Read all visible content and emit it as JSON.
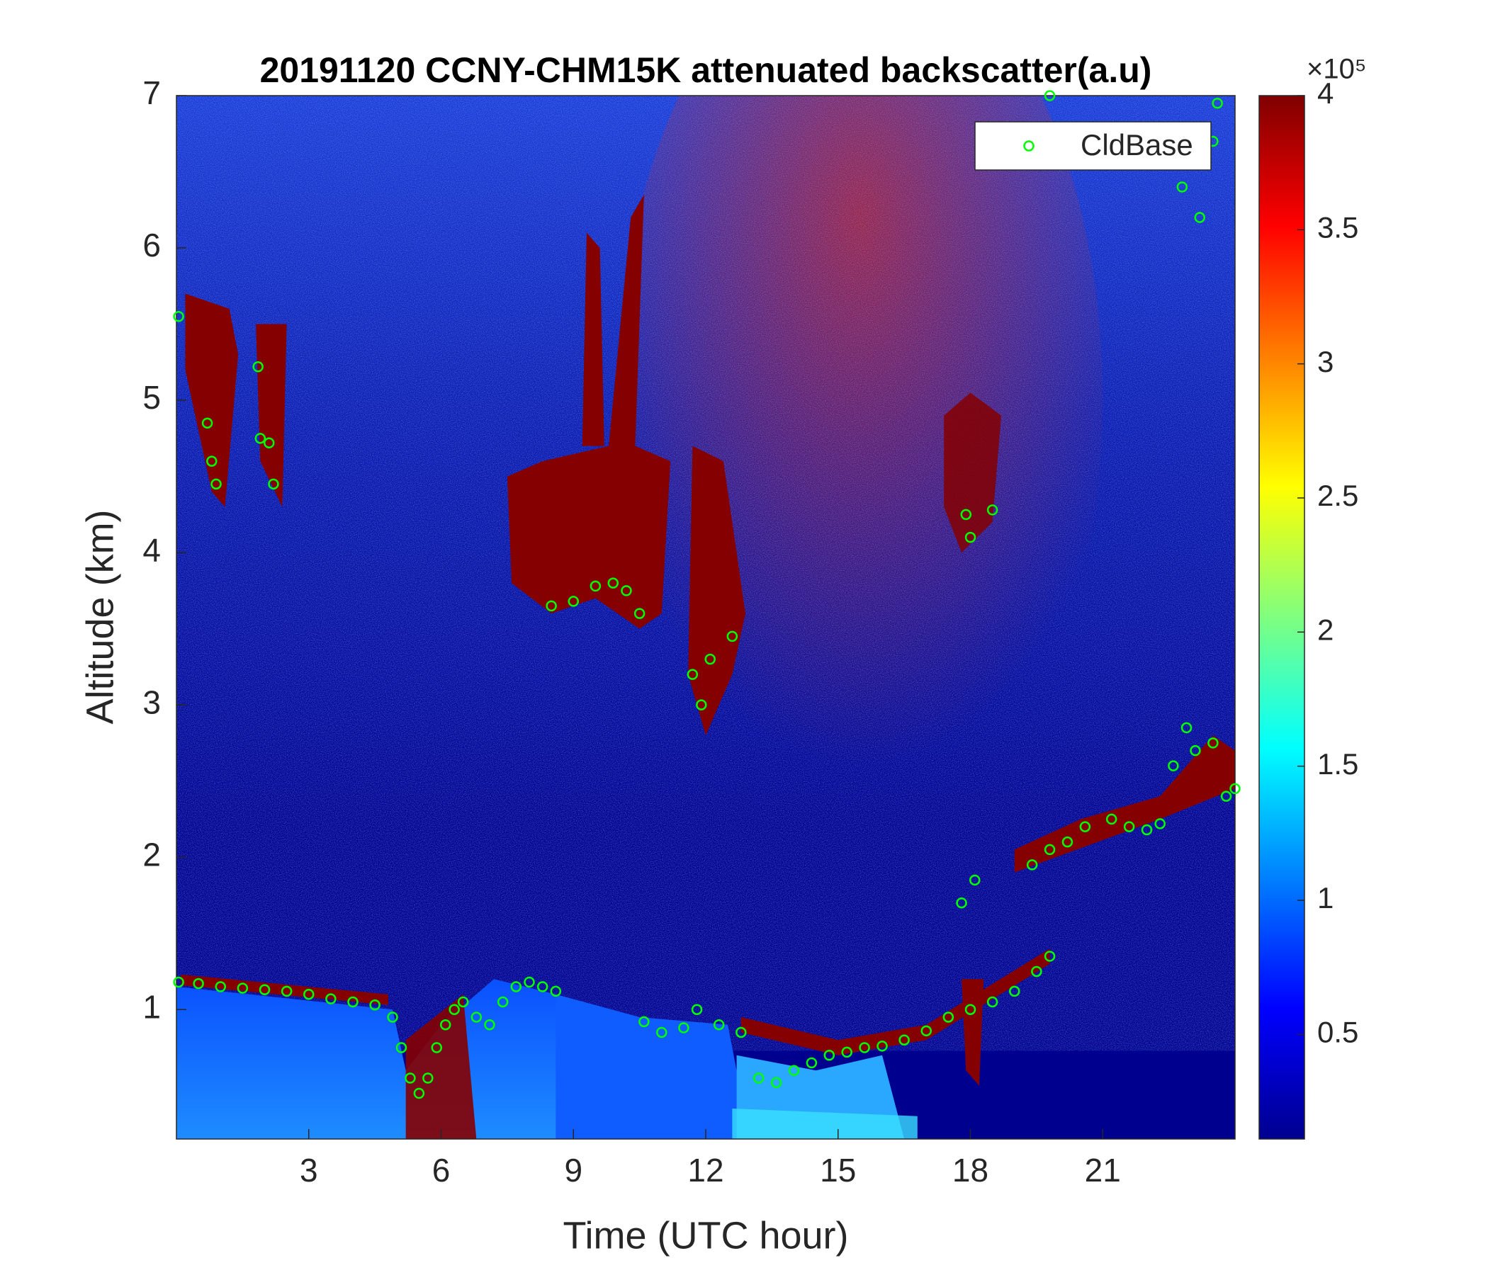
{
  "chart_data": {
    "type": "scatter",
    "title": "20191120 CCNY-CHM15K attenuated backscatter(a.u)",
    "xlabel": "Time (UTC hour)",
    "ylabel": "Altitude (km)",
    "xlim": [
      0,
      24
    ],
    "xticks": [
      3,
      6,
      9,
      12,
      15,
      18,
      21
    ],
    "ylim": [
      0.15,
      7
    ],
    "yticks": [
      1,
      2,
      3,
      4,
      5,
      6,
      7
    ],
    "legend": "upper right",
    "colorbar": {
      "clim": [
        0.11,
        4
      ],
      "ticks": [
        0.5,
        1,
        1.5,
        2,
        2.5,
        3,
        3.5,
        4
      ],
      "multiplier": "×10⁵",
      "colormap": "jet"
    },
    "series": [
      {
        "name": "CldBase",
        "color": "#00ff00",
        "x": [
          0.05,
          0.5,
          1,
          1.5,
          2,
          2.5,
          3,
          3.5,
          4,
          4.5,
          4.9,
          5.1,
          5.3,
          5.5,
          5.7,
          5.9,
          6.1,
          6.3,
          6.5,
          6.8,
          7.1,
          7.4,
          7.7,
          8.0,
          8.3,
          8.6,
          10.6,
          11,
          11.5,
          11.8,
          12.3,
          12.8,
          13.2,
          13.6,
          14.0,
          14.4,
          14.8,
          15.2,
          15.6,
          16,
          16.5,
          17,
          17.5,
          18,
          18.5,
          19,
          19.5,
          19.8,
          17.8,
          18.1,
          19.4,
          19.8,
          20.2,
          20.6,
          21.2,
          21.6,
          22.0,
          22.3,
          22.6,
          22.9,
          23.1,
          23.5,
          23.8,
          24,
          8.5,
          9,
          9.5,
          9.9,
          10.2,
          10.5,
          11.7,
          11.9,
          12.1,
          12.6,
          0.05,
          0.7,
          0.8,
          0.9,
          1.85,
          1.9,
          2.1,
          2.2,
          17.9,
          18,
          18.5,
          19.8,
          22.8,
          23.2,
          23.5,
          23.6
        ],
        "values": [
          1.18,
          1.17,
          1.15,
          1.14,
          1.13,
          1.12,
          1.1,
          1.07,
          1.05,
          1.03,
          0.95,
          0.75,
          0.55,
          0.45,
          0.55,
          0.75,
          0.9,
          1.0,
          1.05,
          0.95,
          0.9,
          1.05,
          1.15,
          1.18,
          1.15,
          1.12,
          0.92,
          0.85,
          0.88,
          1.0,
          0.9,
          0.85,
          0.55,
          0.52,
          0.6,
          0.65,
          0.7,
          0.72,
          0.75,
          0.76,
          0.8,
          0.86,
          0.95,
          1.0,
          1.05,
          1.12,
          1.25,
          1.35,
          1.7,
          1.85,
          1.95,
          2.05,
          2.1,
          2.2,
          2.25,
          2.2,
          2.18,
          2.22,
          2.6,
          2.85,
          2.7,
          2.75,
          2.4,
          2.45,
          3.65,
          3.68,
          3.78,
          3.8,
          3.75,
          3.6,
          3.2,
          3.0,
          3.3,
          3.45,
          5.55,
          4.85,
          4.6,
          4.45,
          5.22,
          4.75,
          4.72,
          4.45,
          4.25,
          4.1,
          4.28,
          7.0,
          6.4,
          6.2,
          6.7,
          6.95
        ]
      }
    ]
  }
}
